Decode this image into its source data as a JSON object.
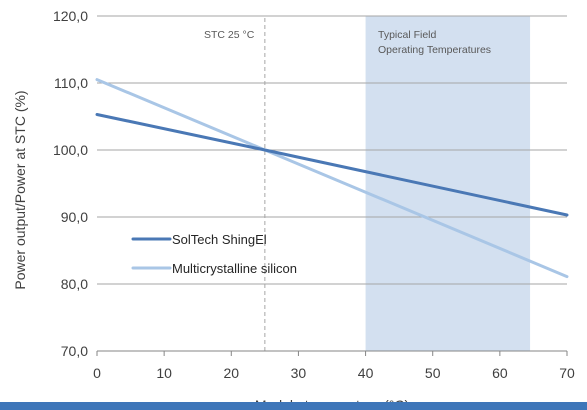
{
  "chart_data": {
    "type": "line",
    "title": "",
    "xlabel": "Module temperature (°C)",
    "ylabel": "Power output/Power at STC (%)",
    "xlim": [
      0,
      70
    ],
    "ylim": [
      70,
      120
    ],
    "x_ticks": [
      "0",
      "10",
      "20",
      "30",
      "40",
      "50",
      "60",
      "70"
    ],
    "y_ticks": [
      "70,0",
      "80,0",
      "90,0",
      "100,0",
      "110,0",
      "120,0"
    ],
    "grid": "horizontal",
    "legend_position": "left",
    "series": [
      {
        "name": "SolTech ShingEl",
        "color": "#4a78b5",
        "x": [
          0,
          25,
          70
        ],
        "y": [
          105.3,
          100.0,
          90.3
        ]
      },
      {
        "name": "Multicrystalline silicon",
        "color": "#a9c6e6",
        "x": [
          0,
          25,
          70
        ],
        "y": [
          110.5,
          100.0,
          81.1
        ]
      }
    ],
    "annotations": {
      "stc_line": {
        "label": "STC 25 °C",
        "x": 25
      },
      "field_band": {
        "label_line1": "Typical Field",
        "label_line2": "Operating Temperatures",
        "x_from": 40,
        "x_to": 64.5,
        "color": "#d3e0f0"
      }
    }
  },
  "colors": {
    "gridline": "#a6a6a6",
    "axis": "#868686",
    "bottom_band": "#3e76b9"
  }
}
